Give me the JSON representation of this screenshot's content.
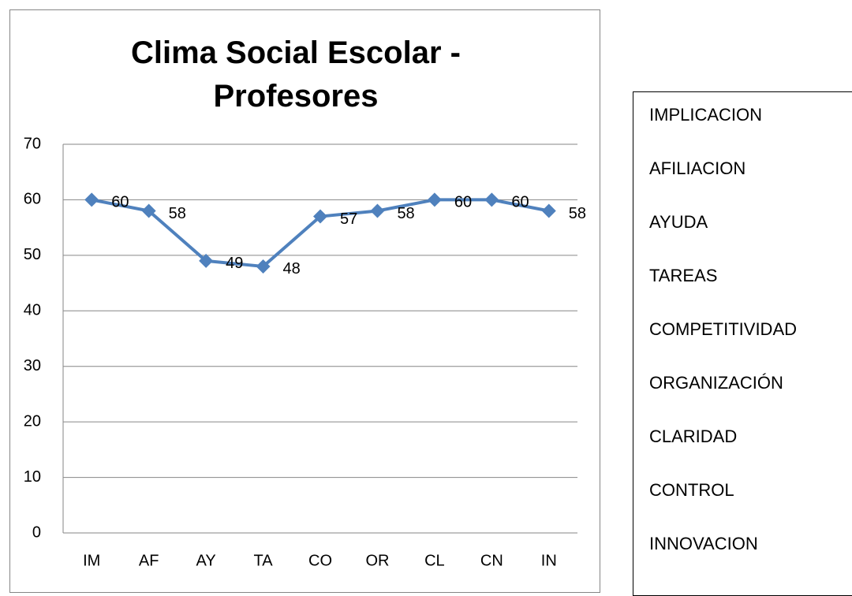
{
  "chart_data": {
    "type": "line",
    "title": "Clima Social Escolar - Profesores",
    "categories": [
      "IM",
      "AF",
      "AY",
      "TA",
      "CO",
      "OR",
      "CL",
      "CN",
      "IN"
    ],
    "series": [
      {
        "name": "Profesores",
        "color": "#4f81bd",
        "values": [
          60,
          58,
          49,
          48,
          57,
          58,
          60,
          60,
          58
        ]
      }
    ],
    "ylim": [
      0,
      70
    ],
    "yticks": [
      0,
      10,
      20,
      30,
      40,
      50,
      60,
      70
    ],
    "grid": true,
    "data_labels": true
  },
  "side_list": {
    "items": [
      "IMPLICACION",
      "AFILIACION",
      "AYUDA",
      "TAREAS",
      "COMPETITIVIDAD",
      "ORGANIZACIÓN",
      "CLARIDAD",
      "CONTROL",
      "INNOVACION"
    ]
  }
}
